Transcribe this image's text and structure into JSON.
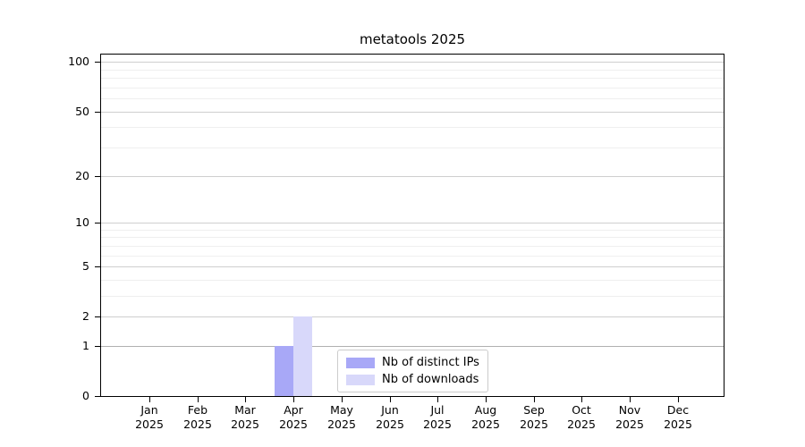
{
  "chart_data": {
    "type": "bar",
    "title": "metatools 2025",
    "year_label": "2025",
    "categories": [
      "Jan",
      "Feb",
      "Mar",
      "Apr",
      "May",
      "Jun",
      "Jul",
      "Aug",
      "Sep",
      "Oct",
      "Nov",
      "Dec"
    ],
    "series": [
      {
        "name": "Nb of distinct IPs",
        "color": "#a8a8f7",
        "values": [
          0,
          0,
          0,
          1,
          0,
          0,
          0,
          0,
          0,
          0,
          0,
          0
        ]
      },
      {
        "name": "Nb of downloads",
        "color": "#d8d8fa",
        "values": [
          0,
          0,
          0,
          2,
          0,
          0,
          0,
          0,
          0,
          0,
          0,
          0
        ]
      }
    ],
    "y_axis": {
      "scale": "log10(value+1)",
      "ticks": [
        0,
        1,
        2,
        5,
        10,
        20,
        50,
        100
      ],
      "minor_gridlines": [
        3,
        4,
        6,
        7,
        8,
        9,
        30,
        40,
        60,
        70,
        80,
        90
      ],
      "top_value": 111
    },
    "x_axis": {
      "tick_label_lines": 2
    },
    "grid": "horizontal",
    "legend_position": "lower center",
    "background_color": "#ffffff",
    "unit_line_color": "#b0b0b0"
  }
}
